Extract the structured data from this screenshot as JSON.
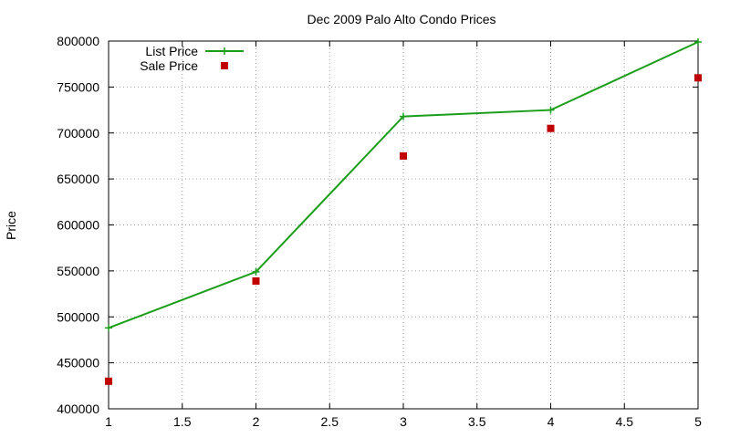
{
  "chart_data": {
    "type": "line",
    "title": "Dec 2009 Palo Alto Condo Prices",
    "xlabel": "",
    "ylabel": "Price",
    "xlim": [
      1,
      5
    ],
    "ylim": [
      400000,
      800000
    ],
    "x_ticks": [
      "1",
      "1.5",
      "2",
      "2.5",
      "3",
      "3.5",
      "4",
      "4.5",
      "5"
    ],
    "y_ticks": [
      "400000",
      "450000",
      "500000",
      "550000",
      "600000",
      "650000",
      "700000",
      "750000",
      "800000"
    ],
    "grid": true,
    "legend_position": "top-left",
    "series": [
      {
        "name": "List Price",
        "style": "line-with-plus-markers",
        "color": "#1a9e1a",
        "x": [
          1,
          2,
          3,
          4,
          5
        ],
        "values": [
          488000,
          549000,
          718000,
          725000,
          799000
        ]
      },
      {
        "name": "Sale Price",
        "style": "square-markers",
        "color": "#c00000",
        "x": [
          1,
          2,
          3,
          4,
          5
        ],
        "values": [
          430000,
          539000,
          675000,
          705000,
          760000
        ]
      }
    ]
  }
}
